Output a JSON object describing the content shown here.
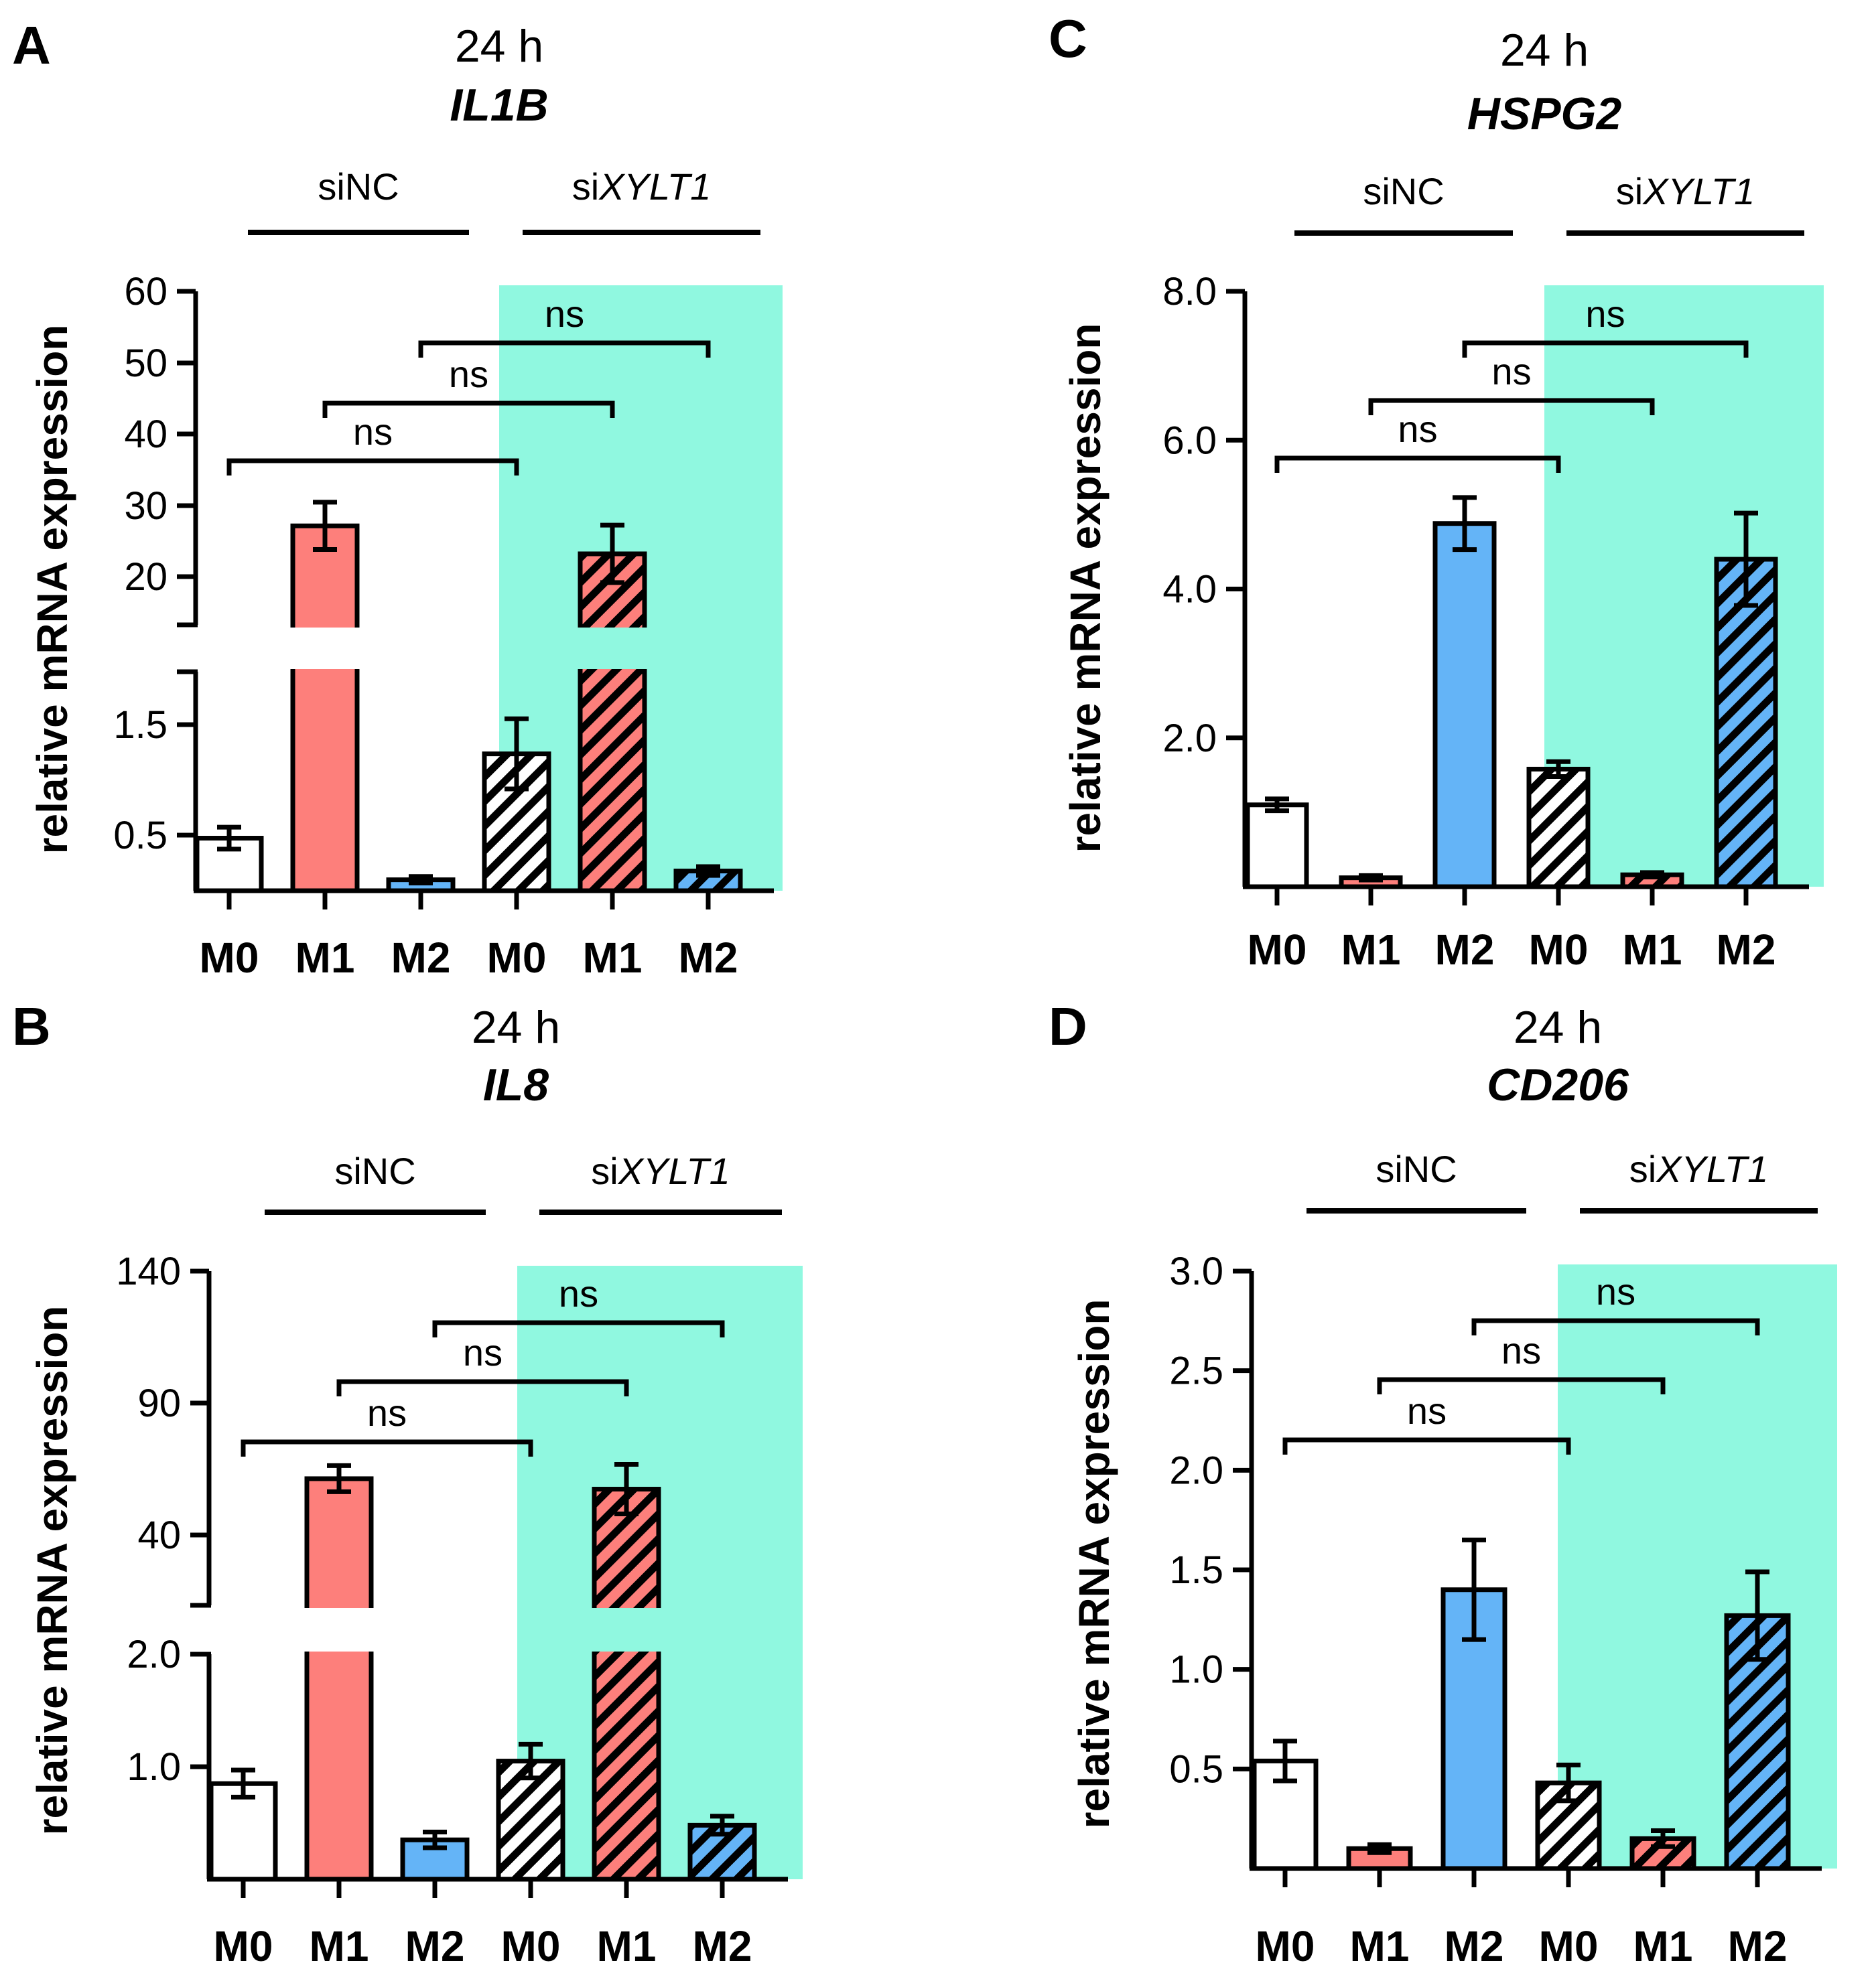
{
  "colors": {
    "axis": "#000000",
    "m0": "#ffffff",
    "m1": "#fd7f7b",
    "m2": "#64b4f7",
    "knockdown_bg": "#90f8e0"
  },
  "chart_data": [
    {
      "panel": "A",
      "type": "bar",
      "time": "24 h",
      "gene": "IL1B",
      "groups": [
        "siNC",
        "siXYLT1"
      ],
      "group_labels": [
        {
          "prefix": "si",
          "italic": "NC",
          "italic_part": false
        },
        {
          "prefix": "si",
          "italic": "XYLT1",
          "italic_part": true
        }
      ],
      "categories": [
        "M0",
        "M1",
        "M2",
        "M0",
        "M1",
        "M2"
      ],
      "values": [
        0.48,
        27.3,
        0.1,
        1.25,
        23.4,
        0.18
      ],
      "errors": [
        0.1,
        3.3,
        0.03,
        0.32,
        4.0,
        0.04
      ],
      "ylabel": "relative mRNA expression",
      "broken_axis": true,
      "lower_ylim": [
        0,
        2.0
      ],
      "lower_ticks": [
        "0.5",
        "1.5"
      ],
      "upper_ylim": [
        13.5,
        60
      ],
      "upper_ticks": [
        "20",
        "30",
        "40",
        "50",
        "60"
      ],
      "comparisons": [
        {
          "from": 0,
          "to": 3,
          "label": "ns"
        },
        {
          "from": 1,
          "to": 4,
          "label": "ns"
        },
        {
          "from": 2,
          "to": 5,
          "label": "ns"
        }
      ]
    },
    {
      "panel": "B",
      "type": "bar",
      "time": "24 h",
      "gene": "IL8",
      "groups": [
        "siNC",
        "siXYLT1"
      ],
      "categories": [
        "M0",
        "M1",
        "M2",
        "M0",
        "M1",
        "M2"
      ],
      "values": [
        0.85,
        60.5,
        0.35,
        1.05,
        56.5,
        0.48
      ],
      "errors": [
        0.12,
        5.0,
        0.07,
        0.15,
        9.5,
        0.08
      ],
      "ylabel": "relative mRNA expression",
      "broken_axis": true,
      "lower_ylim": [
        0,
        2.0
      ],
      "lower_ticks": [
        "1.0",
        "2.0"
      ],
      "upper_ylim": [
        12,
        140
      ],
      "upper_ticks": [
        "40",
        "90",
        "140"
      ],
      "comparisons": [
        {
          "from": 0,
          "to": 3,
          "label": "ns"
        },
        {
          "from": 1,
          "to": 4,
          "label": "ns"
        },
        {
          "from": 2,
          "to": 5,
          "label": "ns"
        }
      ]
    },
    {
      "panel": "C",
      "type": "bar",
      "time": "24 h",
      "gene": "HSPG2",
      "groups": [
        "siNC",
        "siXYLT1"
      ],
      "categories": [
        "M0",
        "M1",
        "M2",
        "M0",
        "M1",
        "M2"
      ],
      "values": [
        1.1,
        0.12,
        4.88,
        1.58,
        0.16,
        4.4
      ],
      "errors": [
        0.08,
        0.03,
        0.35,
        0.1,
        0.03,
        0.62
      ],
      "ylabel": "relative mRNA expression",
      "broken_axis": false,
      "ylim": [
        0,
        8.0
      ],
      "ticks": [
        "2.0",
        "4.0",
        "6.0",
        "8.0"
      ],
      "comparisons": [
        {
          "from": 0,
          "to": 3,
          "label": "ns"
        },
        {
          "from": 1,
          "to": 4,
          "label": "ns"
        },
        {
          "from": 2,
          "to": 5,
          "label": "ns"
        }
      ]
    },
    {
      "panel": "D",
      "type": "bar",
      "time": "24 h",
      "gene": "CD206",
      "groups": [
        "siNC",
        "siXYLT1"
      ],
      "categories": [
        "M0",
        "M1",
        "M2",
        "M0",
        "M1",
        "M2"
      ],
      "values": [
        0.54,
        0.1,
        1.4,
        0.43,
        0.15,
        1.27
      ],
      "errors": [
        0.1,
        0.02,
        0.25,
        0.09,
        0.04,
        0.22
      ],
      "ylabel": "relative mRNA expression",
      "broken_axis": false,
      "ylim": [
        0,
        3.0
      ],
      "ticks": [
        "0.5",
        "1.0",
        "1.5",
        "2.0",
        "2.5",
        "3.0"
      ],
      "comparisons": [
        {
          "from": 0,
          "to": 3,
          "label": "ns"
        },
        {
          "from": 1,
          "to": 4,
          "label": "ns"
        },
        {
          "from": 2,
          "to": 5,
          "label": "ns"
        }
      ]
    }
  ]
}
